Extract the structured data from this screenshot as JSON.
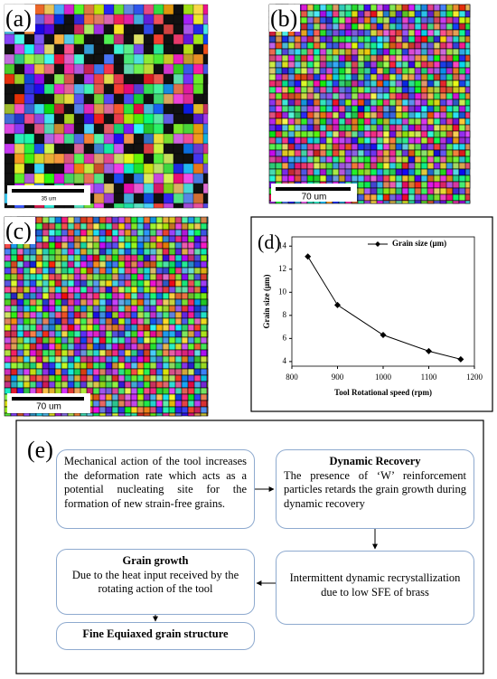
{
  "panels": [
    {
      "label": "(a)",
      "scale_bar": "35 um"
    },
    {
      "label": "(b)",
      "scale_bar": "70 um"
    },
    {
      "label": "(c)",
      "scale_bar": "70 um"
    }
  ],
  "chart_data": {
    "type": "line",
    "label": "(d)",
    "x_label": "Tool Rotational speed (rpm)",
    "y_label": "Grain size (μm)",
    "x": [
      835,
      900,
      1000,
      1100,
      1170
    ],
    "series": [
      {
        "name": "Grain size (μm)",
        "color": "#000000",
        "values": [
          13.1,
          8.9,
          6.3,
          4.9,
          4.2
        ]
      }
    ],
    "xlim": [
      800,
      1200
    ],
    "xticks": [
      800,
      900,
      1000,
      1100,
      1200
    ],
    "ylim": [
      3.6,
      14.8
    ],
    "yticks": [
      4,
      6,
      8,
      10,
      12,
      14
    ],
    "legend": "upper right"
  },
  "flowchart": {
    "label": "(e)",
    "nodes": [
      {
        "text": "Mechanical action of the tool increases the deformation rate which acts as a potential nucleating site for the formation of new strain-free grains."
      },
      {
        "title": "Dynamic Recovery",
        "text": "The presence of ‘W’ reinforcement particles retards the grain growth during dynamic recovery"
      },
      {
        "text": "Intermittent dynamic recrystallization due to low SFE of brass"
      },
      {
        "title": "Grain growth",
        "text": "Due to the heat input received by the rotating action of the tool"
      },
      {
        "title": "Fine Equiaxed grain structure"
      }
    ]
  }
}
